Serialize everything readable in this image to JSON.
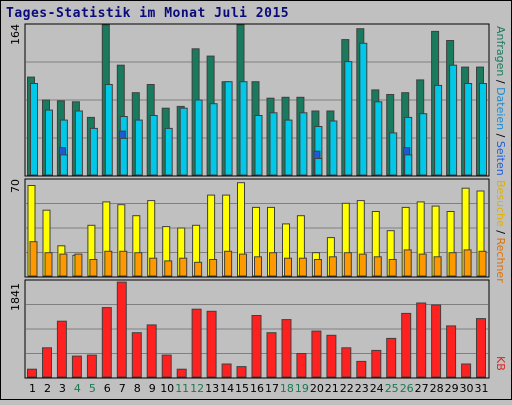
{
  "title": "Tages-Statistik im Monat Juli 2015",
  "colors": {
    "anfragen": "#1a7a5e",
    "dateien": "#00c8e8",
    "seiten": "#1e5ad8",
    "besuche": "#ffff00",
    "rechner": "#ff9900",
    "kb": "#ff2020",
    "frame": "#000000",
    "panel_bg": "#c0c0c0",
    "grid": "#808080"
  },
  "side_legend": {
    "top": [
      {
        "text": "Anfragen",
        "color": "#1a7a5e"
      },
      {
        "text": " / ",
        "color": "#000000"
      },
      {
        "text": "Dateien",
        "color": "#1a8ad0"
      },
      {
        "text": " / ",
        "color": "#000000"
      },
      {
        "text": "Seiten",
        "color": "#1e5ad8"
      }
    ],
    "middle": [
      {
        "text": "Besuche",
        "color": "#e0b000"
      },
      {
        "text": " / ",
        "color": "#000000"
      },
      {
        "text": "Rechner",
        "color": "#e07000"
      }
    ],
    "bottom": [
      {
        "text": "KB",
        "color": "#e02020"
      }
    ]
  },
  "chart_data": [
    {
      "type": "bar",
      "panel": "top",
      "ymax_label": "164",
      "ylim": [
        0,
        164
      ],
      "categories": [
        "1",
        "2",
        "3",
        "4",
        "5",
        "6",
        "7",
        "8",
        "9",
        "10",
        "11",
        "12",
        "13",
        "14",
        "15",
        "16",
        "17",
        "18",
        "19",
        "20",
        "21",
        "22",
        "23",
        "24",
        "25",
        "26",
        "27",
        "28",
        "29",
        "30",
        "31"
      ],
      "weekend_days": [
        "4",
        "5",
        "11",
        "12",
        "18",
        "19",
        "25",
        "26"
      ],
      "series": [
        {
          "name": "Anfragen",
          "values": [
            107,
            82,
            81,
            80,
            63,
            164,
            120,
            90,
            99,
            73,
            75,
            138,
            130,
            102,
            164,
            102,
            84,
            85,
            85,
            70,
            70,
            148,
            160,
            93,
            88,
            90,
            104,
            157,
            147,
            118,
            118
          ]
        },
        {
          "name": "Dateien",
          "values": [
            100,
            71,
            60,
            70,
            51,
            99,
            64,
            60,
            65,
            51,
            73,
            82,
            78,
            102,
            102,
            65,
            68,
            60,
            68,
            53,
            59,
            124,
            144,
            80,
            46,
            63,
            67,
            98,
            120,
            100,
            100
          ]
        },
        {
          "name": "Seiten",
          "values": [
            0,
            0,
            30,
            0,
            0,
            0,
            48,
            0,
            0,
            0,
            0,
            0,
            0,
            0,
            0,
            0,
            0,
            0,
            0,
            26,
            0,
            0,
            0,
            0,
            0,
            30,
            0,
            0,
            0,
            0,
            0
          ]
        }
      ]
    },
    {
      "type": "bar",
      "panel": "middle",
      "ymax_label": "70",
      "ylim": [
        0,
        70
      ],
      "categories": [
        "1",
        "2",
        "3",
        "4",
        "5",
        "6",
        "7",
        "8",
        "9",
        "10",
        "11",
        "12",
        "13",
        "14",
        "15",
        "16",
        "17",
        "18",
        "19",
        "20",
        "21",
        "22",
        "23",
        "24",
        "25",
        "26",
        "27",
        "28",
        "29",
        "30",
        "31"
      ],
      "series": [
        {
          "name": "Besuche",
          "values": [
            66,
            48,
            22,
            15,
            37,
            54,
            52,
            44,
            55,
            36,
            35,
            37,
            59,
            59,
            68,
            50,
            50,
            38,
            44,
            17,
            28,
            53,
            55,
            47,
            33,
            50,
            54,
            51,
            47,
            64,
            62
          ]
        },
        {
          "name": "Rechner",
          "values": [
            25,
            17,
            16,
            16,
            12,
            18,
            18,
            17,
            13,
            11,
            13,
            10,
            12,
            18,
            16,
            14,
            17,
            13,
            13,
            12,
            14,
            17,
            16,
            14,
            12,
            19,
            16,
            14,
            17,
            19,
            18
          ]
        }
      ]
    },
    {
      "type": "bar",
      "panel": "bottom",
      "ymax_label": "1841",
      "ylim": [
        0,
        1841
      ],
      "categories": [
        "1",
        "2",
        "3",
        "4",
        "5",
        "6",
        "7",
        "8",
        "9",
        "10",
        "11",
        "12",
        "13",
        "14",
        "15",
        "16",
        "17",
        "18",
        "19",
        "20",
        "21",
        "22",
        "23",
        "24",
        "25",
        "26",
        "27",
        "28",
        "29",
        "30",
        "31"
      ],
      "series": [
        {
          "name": "KB",
          "values": [
            150,
            560,
            1070,
            400,
            420,
            1330,
            1820,
            850,
            1000,
            420,
            150,
            1300,
            1260,
            250,
            200,
            1180,
            850,
            1100,
            450,
            880,
            800,
            560,
            300,
            510,
            740,
            1220,
            1420,
            1380,
            980,
            250,
            1120
          ]
        }
      ]
    }
  ]
}
